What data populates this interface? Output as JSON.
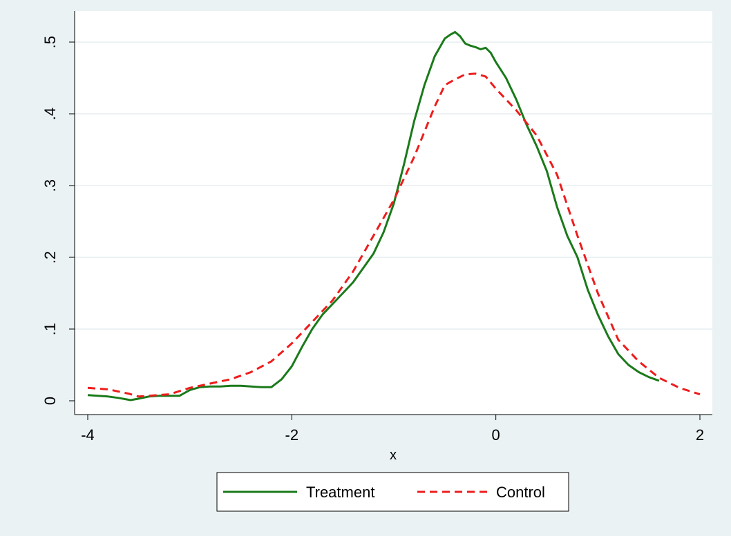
{
  "chart_data": {
    "type": "line",
    "title": "",
    "xlabel": "x",
    "ylabel": "",
    "xlim": [
      -4.1,
      2.2
    ],
    "ylim": [
      -0.02,
      0.53
    ],
    "x_ticks": [
      -4,
      -2,
      0,
      2
    ],
    "x_tick_labels": [
      "-4",
      "-2",
      "0",
      "2"
    ],
    "y_ticks": [
      0,
      0.1,
      0.2,
      0.3,
      0.4,
      0.5
    ],
    "y_tick_labels": [
      "0",
      ".1",
      ".2",
      ".3",
      ".4",
      ".5"
    ],
    "grid": "horizontal",
    "legend_position": "bottom",
    "colors": {
      "plot_bg": "#ffffff",
      "page_bg": "#eaf2f3",
      "grid": "#e6eef0"
    },
    "series": [
      {
        "name": "Treatment",
        "color": "#1a7a1a",
        "style": "solid",
        "x": [
          -4.0,
          -3.8,
          -3.7,
          -3.58,
          -3.5,
          -3.4,
          -3.3,
          -3.1,
          -3.0,
          -2.9,
          -2.8,
          -2.7,
          -2.6,
          -2.5,
          -2.4,
          -2.3,
          -2.2,
          -2.1,
          -2.0,
          -1.9,
          -1.8,
          -1.7,
          -1.6,
          -1.5,
          -1.4,
          -1.3,
          -1.2,
          -1.1,
          -1.0,
          -0.9,
          -0.8,
          -0.7,
          -0.6,
          -0.5,
          -0.45,
          -0.4,
          -0.35,
          -0.3,
          -0.25,
          -0.2,
          -0.15,
          -0.1,
          -0.05,
          0.0,
          0.1,
          0.2,
          0.3,
          0.4,
          0.5,
          0.6,
          0.7,
          0.8,
          0.9,
          1.0,
          1.1,
          1.2,
          1.3,
          1.4,
          1.5,
          1.6
        ],
        "y": [
          0.008,
          0.006,
          0.004,
          0.001,
          0.003,
          0.006,
          0.007,
          0.007,
          0.015,
          0.019,
          0.02,
          0.02,
          0.021,
          0.021,
          0.02,
          0.019,
          0.019,
          0.03,
          0.048,
          0.075,
          0.1,
          0.12,
          0.135,
          0.15,
          0.165,
          0.185,
          0.205,
          0.235,
          0.275,
          0.33,
          0.39,
          0.44,
          0.48,
          0.505,
          0.51,
          0.514,
          0.508,
          0.498,
          0.495,
          0.493,
          0.49,
          0.492,
          0.485,
          0.472,
          0.45,
          0.42,
          0.385,
          0.355,
          0.32,
          0.27,
          0.23,
          0.2,
          0.155,
          0.12,
          0.09,
          0.065,
          0.05,
          0.04,
          0.033,
          0.028
        ]
      },
      {
        "name": "Control",
        "color": "#ee1c1c",
        "style": "dashed",
        "x": [
          -4.0,
          -3.8,
          -3.6,
          -3.5,
          -3.4,
          -3.2,
          -3.0,
          -2.8,
          -2.6,
          -2.4,
          -2.2,
          -2.0,
          -1.8,
          -1.6,
          -1.4,
          -1.2,
          -1.0,
          -0.8,
          -0.6,
          -0.5,
          -0.4,
          -0.3,
          -0.2,
          -0.1,
          0.0,
          0.2,
          0.4,
          0.6,
          0.8,
          1.0,
          1.2,
          1.4,
          1.6,
          1.8,
          2.0
        ],
        "y": [
          0.018,
          0.016,
          0.01,
          0.006,
          0.007,
          0.009,
          0.018,
          0.024,
          0.03,
          0.04,
          0.055,
          0.08,
          0.11,
          0.14,
          0.18,
          0.23,
          0.28,
          0.34,
          0.41,
          0.44,
          0.448,
          0.455,
          0.456,
          0.452,
          0.435,
          0.405,
          0.37,
          0.315,
          0.23,
          0.15,
          0.085,
          0.055,
          0.032,
          0.018,
          0.009
        ]
      }
    ]
  }
}
